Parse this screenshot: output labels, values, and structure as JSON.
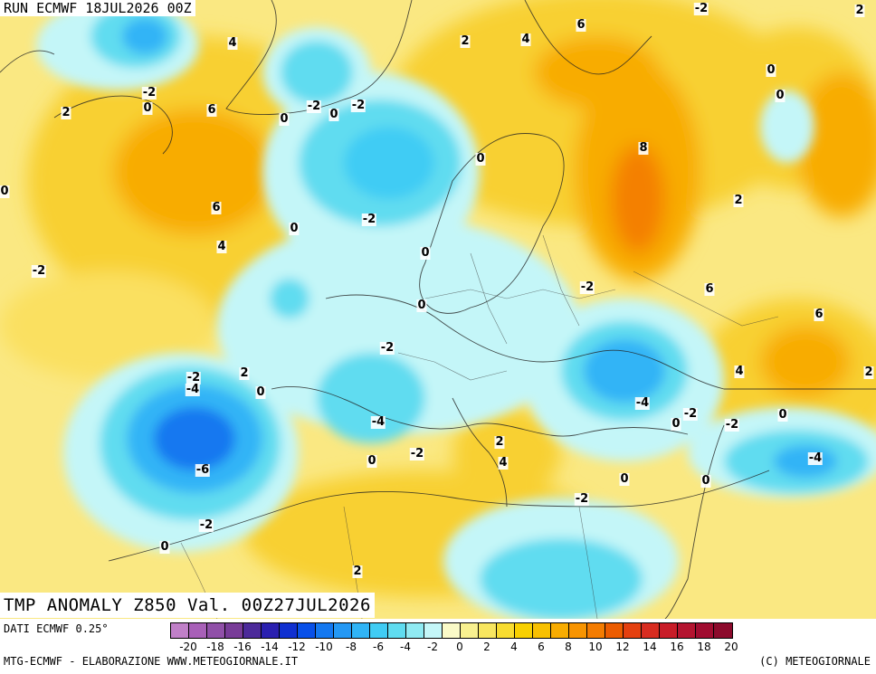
{
  "header": {
    "run_title": "RUN ECMWF 18JUL2026 00Z"
  },
  "map": {
    "variable_title": "TMP ANOMALY Z850 Val. 00Z27JUL2026",
    "contour_labels": [
      "-2",
      "2",
      "4",
      "6",
      "2",
      "4",
      "6",
      "-2",
      "0",
      "2",
      "6",
      "-2",
      "0",
      "-2",
      "0",
      "-2",
      "0",
      "0",
      "0",
      "8",
      "0",
      "6",
      "4",
      "-2",
      "2",
      "0",
      "0",
      "-2",
      "-2",
      "0",
      "6",
      "0",
      "-2",
      "-2",
      "-4",
      "2",
      "-4",
      "4",
      "0",
      "0",
      "-2",
      "-2",
      "-4",
      "-6",
      "-2",
      "-4",
      "0",
      "2",
      "4",
      "-2",
      "0",
      "0",
      "0",
      "2",
      "2"
    ]
  },
  "legend": {
    "source_label": "DATI ECMWF 0.25°",
    "colors": [
      "#c080c8",
      "#a860b8",
      "#9050a8",
      "#783c98",
      "#4c2a9a",
      "#2a20b0",
      "#1030d0",
      "#0850e8",
      "#1478f0",
      "#2498f4",
      "#30b4f6",
      "#40ccf4",
      "#60dcf0",
      "#90eaf2",
      "#c4f6f8",
      "#fafac8",
      "#f8f090",
      "#f8e660",
      "#f8dc30",
      "#f8d000",
      "#f8c000",
      "#f8ac00",
      "#f89400",
      "#f47c00",
      "#ec5c00",
      "#e44010",
      "#d82c20",
      "#c81c28",
      "#b41430",
      "#a00c30",
      "#8c0a2c"
    ],
    "tick_labels": [
      "-20",
      "-18",
      "-16",
      "-14",
      "-12",
      "-10",
      "-8",
      "-6",
      "-4",
      "-2",
      "0",
      "2",
      "4",
      "6",
      "8",
      "10",
      "12",
      "14",
      "16",
      "18",
      "20"
    ]
  },
  "footer": {
    "credit_left": "MTG-ECMWF - ELABORAZIONE WWW.METEOGIORNALE.IT",
    "credit_right": "(C) METEOGIORNALE"
  }
}
